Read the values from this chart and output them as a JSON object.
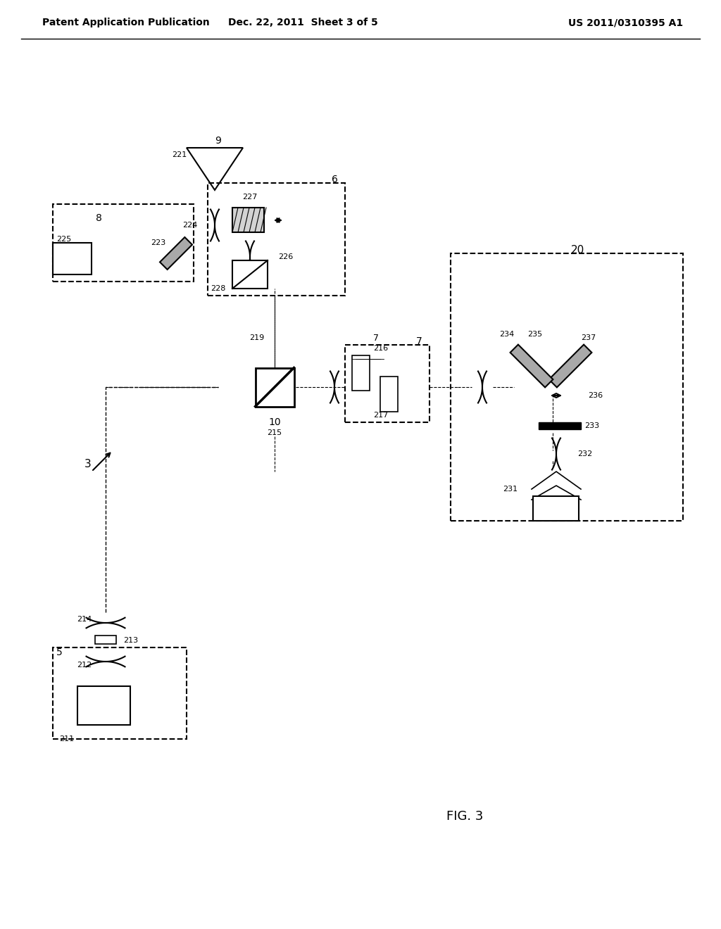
{
  "header_left": "Patent Application Publication",
  "header_center": "Dec. 22, 2011  Sheet 3 of 5",
  "header_right": "US 2011/0310395 A1",
  "fig_label": "FIG. 3",
  "bg_color": "#ffffff",
  "line_color": "#000000",
  "dashed_color": "#555555"
}
